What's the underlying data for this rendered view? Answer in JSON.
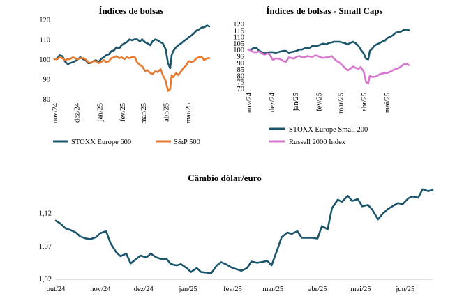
{
  "chart_data": [
    {
      "id": "c1",
      "type": "line",
      "title": "Índices de bolsas",
      "ylim": [
        80,
        120
      ],
      "yticks": [
        80,
        90,
        100,
        110,
        120
      ],
      "x_range": [
        "2024-11-01",
        "2025-06-01"
      ],
      "xticks": [
        "nov/24",
        "dez/24",
        "jan/25",
        "fev/25",
        "mar/25",
        "abr/25",
        "mai/25"
      ],
      "grid": false,
      "legend": "bottom",
      "series": [
        {
          "name": "STOXX Europe 600",
          "color": "#1b556b",
          "x": [
            "2024-11-01",
            "2024-11-05",
            "2024-11-08",
            "2024-11-12",
            "2024-11-15",
            "2024-11-19",
            "2024-11-22",
            "2024-11-26",
            "2024-11-29",
            "2024-12-03",
            "2024-12-06",
            "2024-12-10",
            "2024-12-13",
            "2024-12-17",
            "2024-12-20",
            "2024-12-24",
            "2024-12-27",
            "2024-12-31",
            "2025-01-03",
            "2025-01-07",
            "2025-01-10",
            "2025-01-14",
            "2025-01-17",
            "2025-01-21",
            "2025-01-24",
            "2025-01-28",
            "2025-01-31",
            "2025-02-04",
            "2025-02-07",
            "2025-02-11",
            "2025-02-14",
            "2025-02-18",
            "2025-02-21",
            "2025-02-25",
            "2025-02-28",
            "2025-03-04",
            "2025-03-07",
            "2025-03-11",
            "2025-03-14",
            "2025-03-18",
            "2025-03-21",
            "2025-03-25",
            "2025-03-28",
            "2025-04-01",
            "2025-04-04",
            "2025-04-07",
            "2025-04-09",
            "2025-04-11",
            "2025-04-15",
            "2025-04-18",
            "2025-04-22",
            "2025-04-25",
            "2025-04-29",
            "2025-05-02",
            "2025-05-06",
            "2025-05-09",
            "2025-05-13",
            "2025-05-16",
            "2025-05-20",
            "2025-05-23",
            "2025-05-27",
            "2025-05-30"
          ],
          "values": [
            100,
            100.5,
            102,
            101.5,
            99,
            97.5,
            98,
            98.5,
            99,
            100,
            101,
            100,
            99.5,
            98,
            98,
            99,
            99.5,
            98.5,
            100,
            101,
            102,
            102.5,
            104,
            104.5,
            106,
            105.5,
            107,
            108,
            108.5,
            110,
            109.5,
            110,
            110,
            109,
            110,
            108.5,
            108,
            107,
            109,
            110,
            109.5,
            108.5,
            108,
            105,
            98,
            95.5,
            102,
            104,
            106,
            107,
            108,
            109,
            110,
            111,
            112,
            113,
            114.5,
            115,
            116,
            116,
            117,
            116.5
          ]
        },
        {
          "name": "S&P 500",
          "color": "#e87a2f",
          "x": [
            "2024-11-01",
            "2024-11-05",
            "2024-11-08",
            "2024-11-12",
            "2024-11-15",
            "2024-11-19",
            "2024-11-22",
            "2024-11-26",
            "2024-11-29",
            "2024-12-03",
            "2024-12-06",
            "2024-12-10",
            "2024-12-13",
            "2024-12-17",
            "2024-12-20",
            "2024-12-24",
            "2024-12-27",
            "2024-12-31",
            "2025-01-03",
            "2025-01-07",
            "2025-01-10",
            "2025-01-14",
            "2025-01-17",
            "2025-01-21",
            "2025-01-24",
            "2025-01-28",
            "2025-01-31",
            "2025-02-04",
            "2025-02-07",
            "2025-02-11",
            "2025-02-14",
            "2025-02-18",
            "2025-02-21",
            "2025-02-25",
            "2025-02-28",
            "2025-03-04",
            "2025-03-07",
            "2025-03-11",
            "2025-03-14",
            "2025-03-18",
            "2025-03-21",
            "2025-03-25",
            "2025-03-28",
            "2025-04-01",
            "2025-04-04",
            "2025-04-07",
            "2025-04-09",
            "2025-04-11",
            "2025-04-15",
            "2025-04-18",
            "2025-04-22",
            "2025-04-25",
            "2025-04-29",
            "2025-05-02",
            "2025-05-06",
            "2025-05-09",
            "2025-05-13",
            "2025-05-16",
            "2025-05-20",
            "2025-05-23",
            "2025-05-27",
            "2025-05-30"
          ],
          "values": [
            100,
            100,
            101,
            100.5,
            99.5,
            100,
            100,
            101,
            100.5,
            100,
            100.5,
            100.5,
            100,
            98.5,
            98,
            99,
            99,
            98,
            98.5,
            99.5,
            98.5,
            99,
            100.5,
            101,
            101.5,
            100.5,
            101,
            100,
            101,
            100.5,
            101,
            101,
            98.5,
            97,
            96.5,
            94,
            94.5,
            93,
            92.5,
            94,
            93.5,
            95,
            92,
            89,
            84,
            85,
            92,
            91,
            93,
            92,
            94,
            95.5,
            97,
            99,
            98.5,
            99,
            100.5,
            101,
            101,
            99.5,
            100.5,
            100.5
          ]
        }
      ]
    },
    {
      "id": "c2",
      "type": "line",
      "title": "Índices de bolsas - Small Caps",
      "ylim": [
        70,
        120
      ],
      "yticks": [
        70,
        75,
        80,
        85,
        90,
        95,
        100,
        105,
        110,
        115,
        120
      ],
      "x_range": [
        "2024-11-01",
        "2025-06-01"
      ],
      "xticks": [
        "nov/24",
        "dez/24",
        "jan/25",
        "fev/25",
        "mar/25",
        "abr/25",
        "mai/25"
      ],
      "grid": false,
      "legend": "bottom",
      "series": [
        {
          "name": "STOXX Europe Small 200",
          "color": "#1b556b",
          "x": [
            "2024-11-01",
            "2024-11-05",
            "2024-11-08",
            "2024-11-12",
            "2024-11-15",
            "2024-11-19",
            "2024-11-22",
            "2024-11-26",
            "2024-11-29",
            "2024-12-03",
            "2024-12-06",
            "2024-12-10",
            "2024-12-13",
            "2024-12-17",
            "2024-12-20",
            "2024-12-24",
            "2024-12-27",
            "2024-12-31",
            "2025-01-03",
            "2025-01-07",
            "2025-01-10",
            "2025-01-14",
            "2025-01-17",
            "2025-01-21",
            "2025-01-24",
            "2025-01-28",
            "2025-01-31",
            "2025-02-04",
            "2025-02-07",
            "2025-02-11",
            "2025-02-14",
            "2025-02-18",
            "2025-02-21",
            "2025-02-25",
            "2025-02-28",
            "2025-03-04",
            "2025-03-07",
            "2025-03-11",
            "2025-03-14",
            "2025-03-18",
            "2025-03-21",
            "2025-03-25",
            "2025-03-28",
            "2025-04-01",
            "2025-04-04",
            "2025-04-07",
            "2025-04-09",
            "2025-04-11",
            "2025-04-15",
            "2025-04-18",
            "2025-04-22",
            "2025-04-25",
            "2025-04-29",
            "2025-05-02",
            "2025-05-06",
            "2025-05-09",
            "2025-05-13",
            "2025-05-16",
            "2025-05-20",
            "2025-05-23",
            "2025-05-27",
            "2025-05-30"
          ],
          "values": [
            100,
            100,
            101.5,
            101,
            99,
            98,
            97,
            97.5,
            98,
            98,
            97.5,
            98,
            98.5,
            99,
            99,
            97.5,
            98,
            98.5,
            99,
            100,
            100,
            101,
            101,
            101.5,
            103,
            102.5,
            103,
            104,
            104.5,
            104,
            105,
            105.5,
            106,
            106,
            106,
            105.5,
            105,
            104,
            105,
            106,
            105,
            103,
            100,
            97,
            93,
            92.5,
            99,
            100,
            103,
            104,
            105,
            106,
            107,
            109,
            110,
            111,
            113,
            113.5,
            114,
            115,
            115.5,
            115
          ]
        },
        {
          "name": "Russell 2000 Index",
          "color": "#d877cf",
          "x": [
            "2024-11-01",
            "2024-11-05",
            "2024-11-08",
            "2024-11-12",
            "2024-11-15",
            "2024-11-19",
            "2024-11-22",
            "2024-11-26",
            "2024-11-29",
            "2024-12-03",
            "2024-12-06",
            "2024-12-10",
            "2024-12-13",
            "2024-12-17",
            "2024-12-20",
            "2024-12-24",
            "2024-12-27",
            "2024-12-31",
            "2025-01-03",
            "2025-01-07",
            "2025-01-10",
            "2025-01-14",
            "2025-01-17",
            "2025-01-21",
            "2025-01-24",
            "2025-01-28",
            "2025-01-31",
            "2025-02-04",
            "2025-02-07",
            "2025-02-11",
            "2025-02-14",
            "2025-02-18",
            "2025-02-21",
            "2025-02-25",
            "2025-02-28",
            "2025-03-04",
            "2025-03-07",
            "2025-03-11",
            "2025-03-14",
            "2025-03-18",
            "2025-03-21",
            "2025-03-25",
            "2025-03-28",
            "2025-04-01",
            "2025-04-04",
            "2025-04-07",
            "2025-04-09",
            "2025-04-11",
            "2025-04-15",
            "2025-04-18",
            "2025-04-22",
            "2025-04-25",
            "2025-04-29",
            "2025-05-02",
            "2025-05-06",
            "2025-05-09",
            "2025-05-13",
            "2025-05-16",
            "2025-05-20",
            "2025-05-23",
            "2025-05-27",
            "2025-05-30"
          ],
          "values": [
            100,
            99,
            98,
            98,
            98.5,
            97,
            96,
            97,
            96,
            92,
            93,
            93,
            92.5,
            91,
            90.5,
            94,
            93.5,
            93,
            94.5,
            95,
            94,
            94,
            95,
            94.5,
            94.5,
            95.5,
            95,
            94,
            93.5,
            94,
            94,
            95,
            93,
            91,
            90,
            88,
            86,
            84,
            85,
            87,
            86,
            85,
            86.5,
            83,
            75,
            74,
            80,
            79,
            79,
            79.5,
            81,
            81.5,
            82,
            82,
            83,
            84,
            85,
            85.5,
            87,
            88.5,
            89,
            88
          ]
        }
      ]
    },
    {
      "id": "c3",
      "type": "line",
      "title": "Câmbio dólar/euro",
      "ylim": [
        1.02,
        1.16
      ],
      "yticks": [
        1.02,
        1.07,
        1.12
      ],
      "ytick_labels": [
        "1,02",
        "1,07",
        "1,12"
      ],
      "x_range": [
        "2024-10-01",
        "2025-06-20"
      ],
      "xticks": [
        "out/24",
        "nov/24",
        "dez/24",
        "jan/25",
        "fev/25",
        "mar/25",
        "abr/25",
        "mai/25",
        "jun/25"
      ],
      "grid": false,
      "series": [
        {
          "name": "",
          "color": "#1b556b",
          "x": [
            "2024-10-01",
            "2024-10-04",
            "2024-10-08",
            "2024-10-11",
            "2024-10-15",
            "2024-10-18",
            "2024-10-22",
            "2024-10-25",
            "2024-10-29",
            "2024-11-01",
            "2024-11-05",
            "2024-11-08",
            "2024-11-12",
            "2024-11-15",
            "2024-11-19",
            "2024-11-22",
            "2024-11-26",
            "2024-11-29",
            "2024-12-03",
            "2024-12-06",
            "2024-12-10",
            "2024-12-13",
            "2024-12-17",
            "2024-12-20",
            "2024-12-24",
            "2024-12-27",
            "2024-12-31",
            "2025-01-03",
            "2025-01-07",
            "2025-01-10",
            "2025-01-14",
            "2025-01-17",
            "2025-01-21",
            "2025-01-24",
            "2025-01-28",
            "2025-01-31",
            "2025-02-04",
            "2025-02-07",
            "2025-02-11",
            "2025-02-14",
            "2025-02-18",
            "2025-02-21",
            "2025-02-25",
            "2025-02-28",
            "2025-03-04",
            "2025-03-07",
            "2025-03-11",
            "2025-03-14",
            "2025-03-18",
            "2025-03-21",
            "2025-03-25",
            "2025-03-28",
            "2025-04-01",
            "2025-04-04",
            "2025-04-08",
            "2025-04-11",
            "2025-04-15",
            "2025-04-18",
            "2025-04-22",
            "2025-04-25",
            "2025-04-29",
            "2025-05-02",
            "2025-05-06",
            "2025-05-09",
            "2025-05-13",
            "2025-05-16",
            "2025-05-20",
            "2025-05-23",
            "2025-05-27",
            "2025-05-30",
            "2025-06-03",
            "2025-06-06",
            "2025-06-10",
            "2025-06-13",
            "2025-06-17",
            "2025-06-20"
          ],
          "values": [
            1.108,
            1.104,
            1.096,
            1.094,
            1.09,
            1.084,
            1.081,
            1.08,
            1.083,
            1.089,
            1.092,
            1.074,
            1.06,
            1.054,
            1.058,
            1.043,
            1.05,
            1.055,
            1.052,
            1.058,
            1.052,
            1.05,
            1.05,
            1.042,
            1.04,
            1.042,
            1.036,
            1.03,
            1.036,
            1.03,
            1.029,
            1.028,
            1.04,
            1.045,
            1.041,
            1.037,
            1.034,
            1.032,
            1.036,
            1.046,
            1.044,
            1.045,
            1.047,
            1.04,
            1.064,
            1.083,
            1.09,
            1.088,
            1.092,
            1.082,
            1.082,
            1.082,
            1.081,
            1.1,
            1.095,
            1.127,
            1.14,
            1.137,
            1.146,
            1.138,
            1.141,
            1.13,
            1.132,
            1.125,
            1.11,
            1.118,
            1.126,
            1.13,
            1.135,
            1.133,
            1.142,
            1.145,
            1.143,
            1.156,
            1.153,
            1.155
          ]
        }
      ]
    }
  ]
}
